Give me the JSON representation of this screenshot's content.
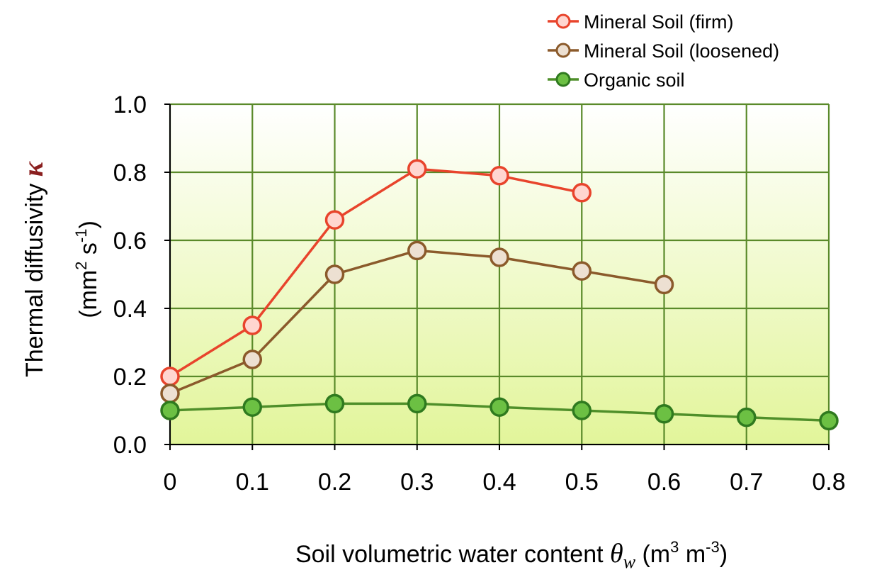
{
  "chart_data": {
    "type": "line",
    "x": [
      0,
      0.1,
      0.2,
      0.3,
      0.4,
      0.5,
      0.6,
      0.7,
      0.8
    ],
    "xlim": [
      0,
      0.8
    ],
    "ylim": [
      0,
      1.0
    ],
    "x_ticks": [
      "0",
      "0.1",
      "0.2",
      "0.3",
      "0.4",
      "0.5",
      "0.6",
      "0.7",
      "0.8"
    ],
    "y_ticks": [
      "0.0",
      "0.2",
      "0.4",
      "0.6",
      "0.8",
      "1.0"
    ],
    "grid": true,
    "legend_position": "top-right",
    "xlabel": {
      "prefix": "Soil volumetric water content ",
      "symbol": "θ",
      "subscript": "w",
      "unit_open": " (m",
      "unit_exp1": "3",
      "unit_mid": " m",
      "unit_exp2": "-3",
      "unit_close": ")"
    },
    "ylabel": {
      "line1": "Thermal diffusivity ",
      "symbol": "κ",
      "line2_open": "(mm",
      "line2_exp1": "2",
      "line2_mid": " s",
      "line2_exp2": "-1",
      "line2_close": ")"
    },
    "series": [
      {
        "name": "Mineral Soil (firm)",
        "line_color": "#e8442c",
        "marker_edge": "#e8442c",
        "marker_fill": "#ffd6d0",
        "values": [
          0.2,
          0.35,
          0.66,
          0.81,
          0.79,
          0.74,
          null,
          null,
          null
        ]
      },
      {
        "name": "Mineral Soil (loosened)",
        "line_color": "#8b5a2b",
        "marker_edge": "#8b5a2b",
        "marker_fill": "#ede0d2",
        "values": [
          0.15,
          0.25,
          0.5,
          0.57,
          0.55,
          0.51,
          0.47,
          null,
          null
        ]
      },
      {
        "name": "Organic soil",
        "line_color": "#4f8f2a",
        "marker_edge": "#2f7a1f",
        "marker_fill": "#6cc043",
        "values": [
          0.1,
          0.11,
          0.12,
          0.12,
          0.11,
          0.1,
          0.09,
          0.08,
          0.07
        ]
      }
    ],
    "colors": {
      "grid": "#5a8a2a",
      "plot_bg_top": "#ffffff",
      "plot_bg_bottom": "#e2f59a",
      "axis": "#000000"
    }
  }
}
